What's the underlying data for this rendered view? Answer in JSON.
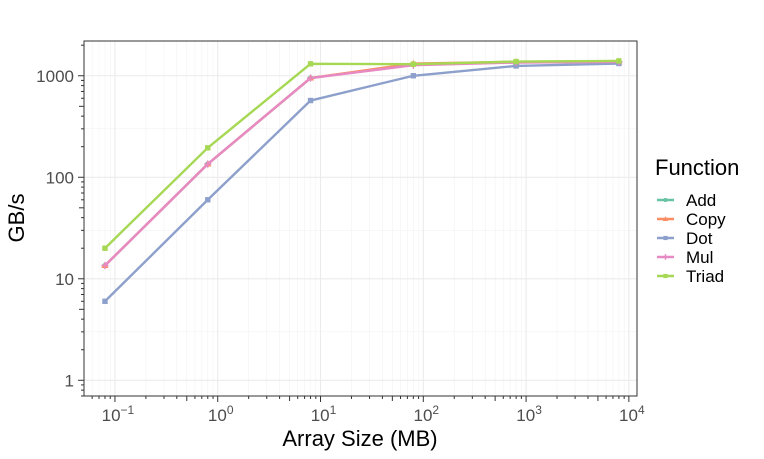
{
  "chart_data": {
    "type": "line",
    "title": "",
    "xlabel": "Array Size (MB)",
    "ylabel": "GB/s",
    "x_scale": "log10",
    "y_scale": "log10",
    "xlim": [
      0.05,
      12000
    ],
    "ylim": [
      0.7,
      2200
    ],
    "x": [
      0.08,
      0.8,
      8,
      80,
      800,
      8000
    ],
    "x_ticks": [
      {
        "base": "10",
        "exp": "−1",
        "value": 0.1
      },
      {
        "base": "10",
        "exp": "0",
        "value": 1
      },
      {
        "base": "10",
        "exp": "1",
        "value": 10
      },
      {
        "base": "10",
        "exp": "2",
        "value": 100
      },
      {
        "base": "10",
        "exp": "3",
        "value": 1000
      },
      {
        "base": "10",
        "exp": "4",
        "value": 10000
      }
    ],
    "y_ticks": [
      {
        "label": "1",
        "value": 1
      },
      {
        "label": "10",
        "value": 10
      },
      {
        "label": "100",
        "value": 100
      },
      {
        "label": "1000",
        "value": 1000
      }
    ],
    "grid": true,
    "legend": {
      "title": "Function",
      "position": "right"
    },
    "series": [
      {
        "name": "Add",
        "color": "#66c2a5",
        "marker": "circle",
        "values": [
          13.5,
          135,
          950,
          1300,
          1370,
          1390
        ]
      },
      {
        "name": "Copy",
        "color": "#fc8d62",
        "marker": "triangle",
        "values": [
          13.5,
          135,
          950,
          1320,
          1370,
          1370
        ]
      },
      {
        "name": "Dot",
        "color": "#8da0cb",
        "marker": "square",
        "values": [
          6,
          60,
          570,
          1000,
          1250,
          1320
        ]
      },
      {
        "name": "Mul",
        "color": "#e78ac3",
        "marker": "plus",
        "values": [
          13.5,
          135,
          950,
          1270,
          1350,
          1370
        ]
      },
      {
        "name": "Triad",
        "color": "#a6d854",
        "marker": "square",
        "values": [
          20,
          195,
          1310,
          1300,
          1380,
          1400
        ]
      }
    ]
  }
}
